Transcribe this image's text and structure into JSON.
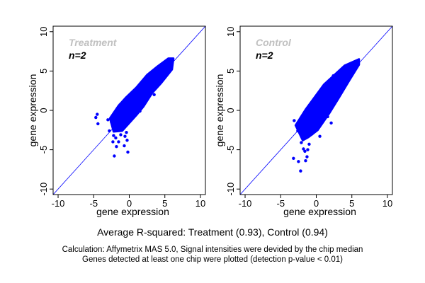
{
  "chart_data": [
    {
      "type": "scatter",
      "panel_label": "Treatment",
      "n_label": "n=2",
      "xlabel": "gene expression",
      "ylabel": "gene expression",
      "xlim": [
        -10.7,
        10.7
      ],
      "ylim": [
        -10.7,
        10.7
      ],
      "ticks": [
        -10,
        -5,
        0,
        5,
        10
      ],
      "tick_labels": [
        "-10",
        "-5",
        "0",
        "5",
        "10"
      ],
      "reference_line": "y = x",
      "dense_cloud_outline": [
        [
          -2.7,
          -1.0
        ],
        [
          -1.5,
          0.6
        ],
        [
          -0.5,
          1.6
        ],
        [
          1.0,
          2.9
        ],
        [
          2.5,
          4.5
        ],
        [
          4.0,
          5.6
        ],
        [
          5.5,
          6.6
        ],
        [
          6.2,
          6.6
        ],
        [
          6.0,
          5.2
        ],
        [
          4.5,
          3.5
        ],
        [
          3.2,
          2.2
        ],
        [
          2.0,
          0.5
        ],
        [
          1.0,
          -0.6
        ],
        [
          0.0,
          -1.6
        ],
        [
          -1.0,
          -2.6
        ],
        [
          -2.2,
          -2.7
        ]
      ],
      "points": [
        [
          -4.7,
          -0.9
        ],
        [
          -4.5,
          -0.5
        ],
        [
          -4.4,
          -1.7
        ],
        [
          -3.0,
          -1.2
        ],
        [
          -2.5,
          -1.5
        ],
        [
          -2.2,
          -3.2
        ],
        [
          -1.8,
          -4.6
        ],
        [
          -1.5,
          -4.0
        ],
        [
          -0.7,
          -4.5
        ],
        [
          -0.2,
          -5.3
        ],
        [
          -2.1,
          -5.8
        ],
        [
          -0.3,
          -3.8
        ],
        [
          -0.4,
          -2.8
        ],
        [
          0.8,
          -0.3
        ],
        [
          2.5,
          1.8
        ],
        [
          3.5,
          2.0
        ],
        [
          -2.3,
          -4.0
        ],
        [
          -1.9,
          -3.5
        ],
        [
          -0.6,
          -3.3
        ],
        [
          1.5,
          -0.1
        ],
        [
          -2.8,
          -2.6
        ],
        [
          -1.2,
          -3.1
        ],
        [
          2.0,
          3.8
        ],
        [
          -1.3,
          0.7
        ]
      ]
    },
    {
      "type": "scatter",
      "panel_label": "Control",
      "n_label": "n=2",
      "xlabel": "gene expression",
      "ylabel": "gene expression",
      "xlim": [
        -10.7,
        10.7
      ],
      "ylim": [
        -10.7,
        10.7
      ],
      "ticks": [
        -10,
        -5,
        0,
        5,
        10
      ],
      "tick_labels": [
        "-10",
        "-5",
        "0",
        "5",
        "10"
      ],
      "reference_line": "y = x",
      "dense_cloud_outline": [
        [
          -1.9,
          -3.8
        ],
        [
          -2.9,
          -1.9
        ],
        [
          -1.5,
          0.1
        ],
        [
          1.1,
          3.3
        ],
        [
          4.0,
          5.7
        ],
        [
          6.0,
          6.5
        ],
        [
          6.0,
          5.8
        ],
        [
          4.7,
          3.9
        ],
        [
          3.1,
          1.5
        ],
        [
          1.8,
          -0.4
        ],
        [
          0.2,
          -2.5
        ],
        [
          -1.1,
          -3.4
        ]
      ],
      "points": [
        [
          -3.2,
          -6.1
        ],
        [
          -2.2,
          -7.7
        ],
        [
          -2.5,
          -6.5
        ],
        [
          -1.5,
          -6.4
        ],
        [
          -1.8,
          -4.9
        ],
        [
          -1.2,
          -5.0
        ],
        [
          -1.3,
          -5.9
        ],
        [
          0.5,
          -3.3
        ],
        [
          2.1,
          -1.6
        ],
        [
          -3.1,
          -1.3
        ],
        [
          -2.1,
          -4.1
        ],
        [
          -1.6,
          -5.2
        ],
        [
          -2.6,
          -2.6
        ],
        [
          1.6,
          -0.8
        ],
        [
          0.0,
          1.4
        ],
        [
          2.4,
          4.4
        ],
        [
          -0.6,
          -3.0
        ],
        [
          -1.0,
          -4.3
        ]
      ]
    }
  ],
  "summary": "Average R-squared: Treatment (0.93), Control (0.94)",
  "footnote_1": "Calculation: Affymetrix MAS 5.0, Signal intensities were devided by the chip median",
  "footnote_2": "Genes detected at least one chip were plotted (detection p-value < 0.01)",
  "colors": {
    "points": "#0000ff",
    "panel_label": "#c0c0c0",
    "line": "#0000ff"
  }
}
